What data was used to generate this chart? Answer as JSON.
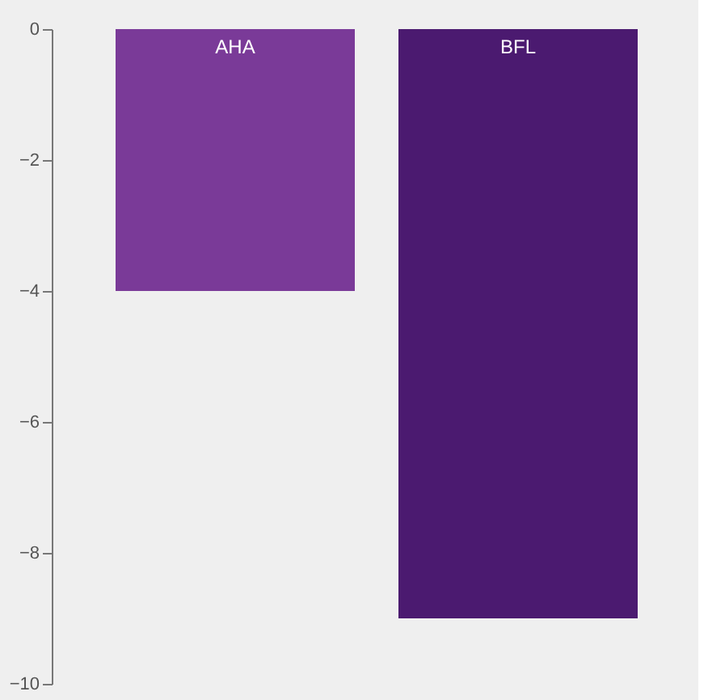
{
  "chart_data": {
    "type": "bar",
    "categories": [
      "AHA",
      "BFL"
    ],
    "values": [
      -4,
      -9
    ],
    "colors": [
      "#7a3a98",
      "#4b1a70"
    ],
    "ylim": [
      -10,
      0
    ],
    "yticks": [
      0,
      -2,
      -4,
      -6,
      -8,
      -10
    ],
    "grid": false
  }
}
